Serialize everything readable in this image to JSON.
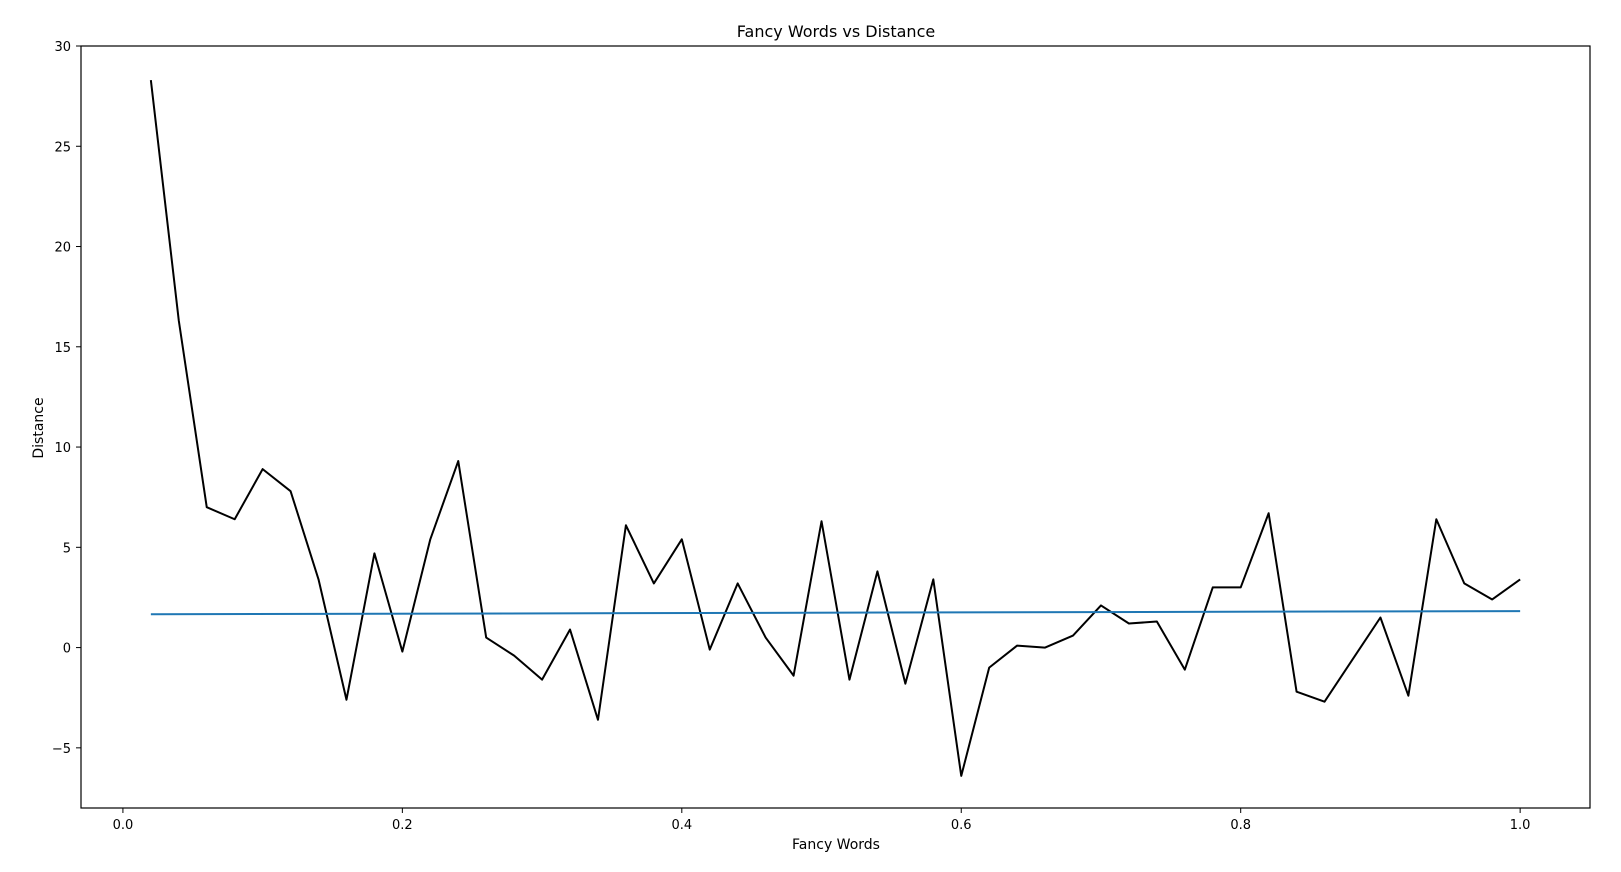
{
  "chart_data": {
    "type": "line",
    "title": "Fancy Words vs Distance",
    "xlabel": "Fancy Words",
    "ylabel": "Distance",
    "xlim": [
      -0.03,
      1.05
    ],
    "ylim": [
      -8,
      30
    ],
    "x_ticks": [
      0.0,
      0.2,
      0.4,
      0.6,
      0.8,
      1.0
    ],
    "x_tick_labels": [
      "0.0",
      "0.2",
      "0.4",
      "0.6",
      "0.8",
      "1.0"
    ],
    "y_ticks": [
      -5,
      0,
      5,
      10,
      15,
      20,
      25,
      30
    ],
    "y_tick_labels": [
      "−5",
      "0",
      "5",
      "10",
      "15",
      "20",
      "25",
      "30"
    ],
    "grid": false,
    "series": [
      {
        "color": "#000000",
        "x": [
          0.02,
          0.04,
          0.06,
          0.08,
          0.1,
          0.12,
          0.14,
          0.16,
          0.18,
          0.2,
          0.22,
          0.24,
          0.26,
          0.28,
          0.3,
          0.32,
          0.34,
          0.36,
          0.38,
          0.4,
          0.42,
          0.44,
          0.46,
          0.48,
          0.5,
          0.52,
          0.54,
          0.56,
          0.58,
          0.6,
          0.62,
          0.64,
          0.66,
          0.68,
          0.7,
          0.72,
          0.74,
          0.76,
          0.78,
          0.8,
          0.82,
          0.84,
          0.86,
          0.88,
          0.9,
          0.92,
          0.94,
          0.96,
          0.98,
          1.0
        ],
        "y": [
          28.3,
          16.3,
          7.0,
          6.4,
          8.9,
          7.8,
          3.4,
          -2.6,
          4.7,
          -0.2,
          5.4,
          9.3,
          0.5,
          -0.4,
          -1.6,
          0.9,
          -3.6,
          6.1,
          3.2,
          5.4,
          -0.1,
          3.2,
          0.5,
          -1.4,
          6.3,
          -1.6,
          3.8,
          -1.8,
          3.4,
          -6.4,
          -1.0,
          0.1,
          0.0,
          0.6,
          2.1,
          1.2,
          1.3,
          -1.1,
          3.0,
          3.0,
          6.7,
          -2.2,
          -2.7,
          -0.6,
          1.5,
          -2.4,
          6.4,
          3.2,
          2.4,
          3.4
        ]
      },
      {
        "color": "#1f77b4",
        "x": [
          0.02,
          1.0
        ],
        "y": [
          1.66,
          1.82
        ]
      }
    ]
  }
}
